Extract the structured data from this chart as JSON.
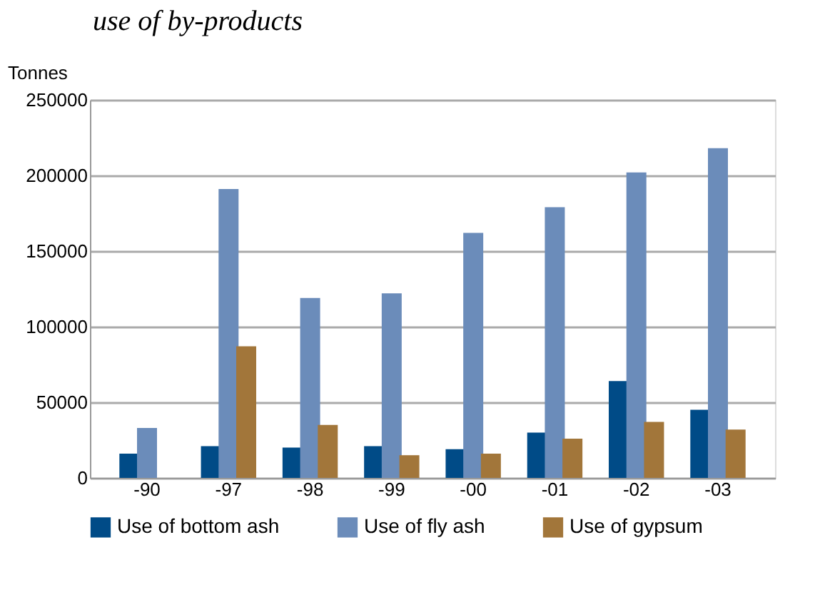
{
  "chart_data": {
    "type": "bar",
    "title": "use of by-products",
    "ylabel": "Tonnes",
    "categories": [
      "-90",
      "-97",
      "-98",
      "-99",
      "-00",
      "-01",
      "-02",
      "-03"
    ],
    "series": [
      {
        "name": "Use of bottom ash",
        "color": "#004b87",
        "values": [
          16000,
          21000,
          20000,
          21000,
          19000,
          30000,
          64000,
          45000
        ]
      },
      {
        "name": "Use of fly ash",
        "color": "#6b8cba",
        "values": [
          33000,
          191000,
          119000,
          122000,
          162000,
          179000,
          202000,
          218000
        ]
      },
      {
        "name": "Use of gypsum",
        "color": "#a2763a",
        "values": [
          null,
          87000,
          35000,
          15000,
          16000,
          26000,
          37000,
          32000
        ]
      }
    ],
    "ylim": [
      0,
      250000
    ],
    "yticks": [
      0,
      50000,
      100000,
      150000,
      200000,
      250000
    ],
    "grid": "y",
    "legend": "bottom"
  }
}
